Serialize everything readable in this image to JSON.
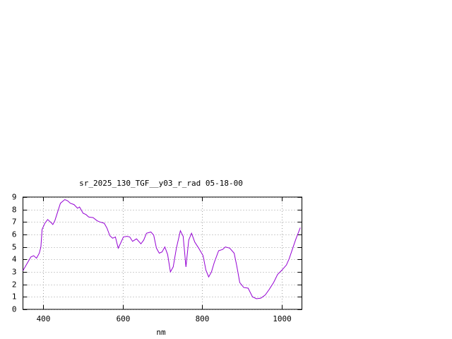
{
  "chart_data": {
    "type": "line",
    "title": "sr_2025_130_TGF__y03_r_rad 05-18-00",
    "x_label": "nm",
    "color": "#9400d3",
    "grid": true,
    "x": [
      350,
      359,
      370,
      377,
      384,
      391,
      395,
      398,
      405,
      412,
      419,
      425,
      430,
      437,
      444,
      455,
      462,
      469,
      478,
      487,
      492,
      501,
      508,
      515,
      526,
      536,
      543,
      554,
      561,
      568,
      575,
      582,
      589,
      595,
      602,
      611,
      618,
      625,
      635,
      646,
      653,
      660,
      671,
      678,
      685,
      692,
      699,
      706,
      713,
      720,
      727,
      735,
      745,
      752,
      759,
      766,
      773,
      781,
      791,
      802,
      809,
      816,
      823,
      830,
      841,
      851,
      858,
      869,
      880,
      887,
      894,
      904,
      915,
      926,
      936,
      947,
      958,
      968,
      979,
      989,
      1000,
      1011,
      1018,
      1028,
      1035,
      1046
    ],
    "values": [
      3.1,
      3.6,
      4.2,
      4.3,
      4.1,
      4.5,
      5.0,
      6.4,
      6.9,
      7.2,
      7.0,
      6.8,
      7.1,
      7.8,
      8.5,
      8.8,
      8.7,
      8.5,
      8.4,
      8.1,
      8.2,
      7.7,
      7.6,
      7.4,
      7.35,
      7.1,
      7.0,
      6.9,
      6.5,
      5.9,
      5.7,
      5.8,
      4.9,
      5.3,
      5.8,
      5.85,
      5.8,
      5.45,
      5.65,
      5.25,
      5.55,
      6.1,
      6.2,
      5.95,
      4.9,
      4.5,
      4.6,
      5.0,
      4.4,
      3.0,
      3.4,
      4.9,
      6.3,
      5.85,
      3.4,
      5.55,
      6.1,
      5.4,
      4.9,
      4.3,
      3.15,
      2.6,
      3.0,
      3.75,
      4.7,
      4.8,
      5.0,
      4.9,
      4.5,
      3.4,
      2.15,
      1.75,
      1.7,
      1.0,
      0.85,
      0.9,
      1.15,
      1.6,
      2.15,
      2.8,
      3.15,
      3.55,
      4.05,
      5.0,
      5.65,
      6.55
    ],
    "xlim": [
      350,
      1050
    ],
    "xticks": [
      400,
      600,
      800,
      1000
    ],
    "ylim": [
      0,
      9
    ],
    "yticks": [
      0,
      1,
      2,
      3,
      4,
      5,
      6,
      7,
      8,
      9
    ]
  }
}
